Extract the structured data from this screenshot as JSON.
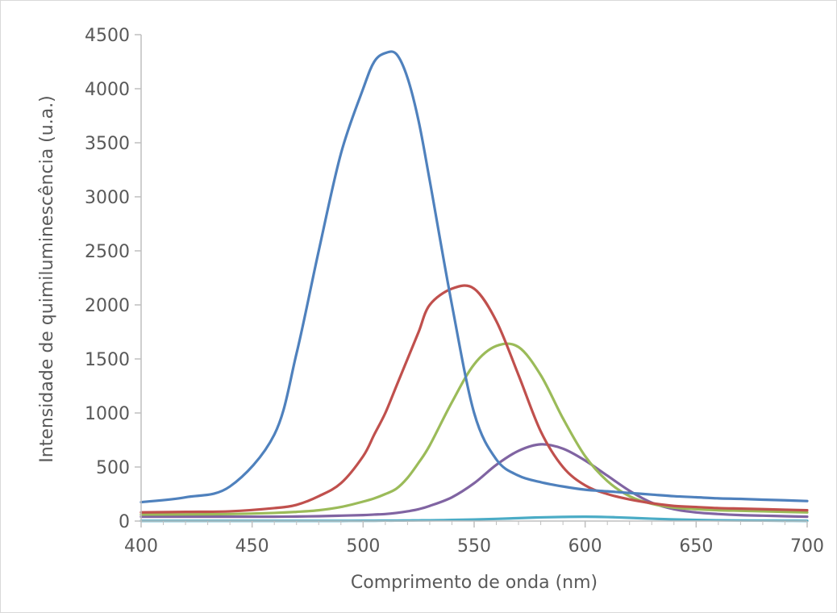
{
  "chart_data": {
    "type": "line",
    "xlabel": "Comprimento de onda (nm)",
    "ylabel": "Intensidade de quimiluminescência (u.a.)",
    "xlim": [
      400,
      700
    ],
    "ylim": [
      0,
      4500
    ],
    "x_ticks": [
      400,
      450,
      500,
      550,
      600,
      650,
      700
    ],
    "y_ticks": [
      0,
      500,
      1000,
      1500,
      2000,
      2500,
      3000,
      3500,
      4000,
      4500
    ],
    "grid": false,
    "legend": "none",
    "x": [
      400,
      420,
      440,
      460,
      470,
      480,
      490,
      500,
      505,
      510,
      515,
      520,
      525,
      530,
      540,
      550,
      560,
      570,
      580,
      590,
      600,
      610,
      620,
      630,
      640,
      650,
      660,
      670,
      680,
      690,
      700
    ],
    "series": [
      {
        "color": "#4F81BD",
        "values": [
          175,
          220,
          320,
          800,
          1550,
          2500,
          3400,
          4000,
          4250,
          4330,
          4320,
          4100,
          3700,
          3150,
          2000,
          1000,
          570,
          420,
          360,
          320,
          290,
          275,
          260,
          245,
          230,
          220,
          210,
          205,
          198,
          192,
          185
        ]
      },
      {
        "color": "#C0504D",
        "values": [
          80,
          85,
          90,
          120,
          150,
          230,
          350,
          600,
          800,
          1000,
          1250,
          1500,
          1750,
          2000,
          2150,
          2150,
          1850,
          1350,
          830,
          500,
          330,
          250,
          200,
          165,
          140,
          130,
          120,
          115,
          110,
          105,
          100
        ]
      },
      {
        "color": "#9BBB59",
        "values": [
          60,
          62,
          65,
          75,
          85,
          100,
          130,
          180,
          210,
          250,
          300,
          400,
          540,
          700,
          1100,
          1450,
          1620,
          1610,
          1350,
          950,
          600,
          370,
          230,
          160,
          125,
          110,
          100,
          95,
          90,
          85,
          80
        ]
      },
      {
        "color": "#8064A2",
        "values": [
          40,
          40,
          40,
          40,
          42,
          45,
          50,
          55,
          60,
          65,
          75,
          90,
          110,
          140,
          220,
          350,
          520,
          650,
          710,
          670,
          560,
          420,
          280,
          170,
          110,
          80,
          65,
          55,
          50,
          45,
          40
        ]
      },
      {
        "color": "#4BACC6",
        "values": [
          2,
          2,
          2,
          2,
          2,
          2,
          2,
          3,
          3,
          4,
          4,
          5,
          6,
          7,
          10,
          14,
          20,
          27,
          34,
          38,
          40,
          37,
          30,
          22,
          15,
          10,
          7,
          5,
          4,
          3,
          2
        ]
      }
    ]
  }
}
